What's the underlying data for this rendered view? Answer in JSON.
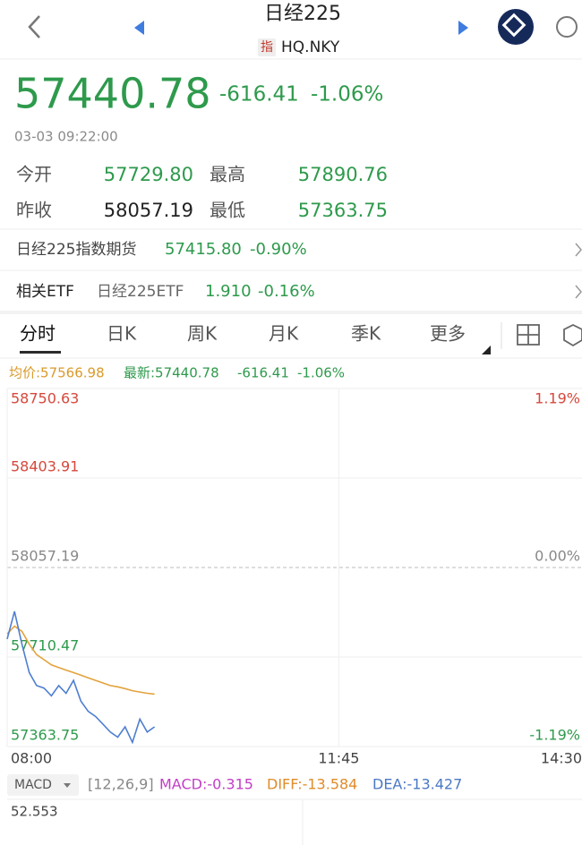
{
  "header": {
    "title": "日经225",
    "badge": "指",
    "code": "HQ.NKY"
  },
  "quote": {
    "price": "57440.78",
    "change": "-616.41",
    "change_pct": "-1.06%",
    "time": "03-03 09:22:00",
    "stats": [
      {
        "label": "今开",
        "value": "57729.80"
      },
      {
        "label": "最高",
        "value": "57890.76"
      },
      {
        "label": "昨收",
        "value": "58057.19"
      },
      {
        "label": "最低",
        "value": "57363.75"
      }
    ]
  },
  "futures": {
    "label": "日经225指数期货",
    "value": "57415.80",
    "change": "-0.90%"
  },
  "etf": {
    "label": "相关ETF",
    "name": "日经225ETF",
    "value": "1.910",
    "change": "-0.16%"
  },
  "tabs": [
    "分时",
    "日K",
    "周K",
    "月K",
    "季K",
    "更多"
  ],
  "legend": {
    "avg": "均价:57566.98",
    "latest": "最新:57440.78",
    "change": "-616.41",
    "pct": "-1.06%"
  },
  "chart_data": {
    "type": "line",
    "categories": [
      "08:00",
      null,
      null,
      null,
      null,
      null,
      null,
      null,
      null,
      null,
      null,
      null,
      null,
      null,
      null,
      null,
      null,
      null,
      null,
      null,
      null,
      null,
      null,
      null,
      null,
      null,
      null,
      null,
      null,
      null,
      null,
      null,
      null,
      null,
      null,
      null,
      null,
      null,
      null,
      null,
      null,
      null,
      null,
      null,
      null,
      "11:45",
      null,
      null,
      null,
      null,
      null,
      null,
      null,
      null,
      null,
      null,
      null,
      null,
      null,
      null,
      null,
      null,
      null,
      null,
      null,
      null,
      null,
      null,
      null,
      null,
      null,
      null,
      null,
      null,
      null,
      null,
      null,
      null,
      "14:30"
    ],
    "series": [
      {
        "name": "最新",
        "color": "#4f7fd0",
        "values": [
          57780,
          57887,
          57760,
          57650,
          57600,
          57590,
          57560,
          57600,
          57570,
          57620,
          57540,
          57500,
          57480,
          57450,
          57420,
          57400,
          57440,
          57380,
          57470,
          57420,
          57440,
          null,
          null,
          null,
          null,
          null,
          null,
          null,
          null,
          null,
          null,
          null,
          null,
          null,
          null,
          null,
          null,
          null,
          null,
          null,
          null,
          null,
          null,
          null,
          null,
          null,
          null,
          null,
          null,
          null,
          null,
          null,
          null,
          null,
          null,
          null,
          null,
          null,
          null,
          null,
          null,
          null,
          null,
          null,
          null,
          null,
          null,
          null,
          null,
          null,
          null,
          null,
          null,
          null,
          null,
          null,
          null,
          null,
          null
        ]
      },
      {
        "name": "均价",
        "color": "#e3a23c",
        "values": [
          57800,
          57830,
          57810,
          57760,
          57720,
          57700,
          57680,
          57670,
          57660,
          57650,
          57640,
          57630,
          57620,
          57610,
          57600,
          57595,
          57588,
          57580,
          57575,
          57570,
          57567,
          null,
          null,
          null,
          null,
          null,
          null,
          null,
          null,
          null,
          null,
          null,
          null,
          null,
          null,
          null,
          null,
          null,
          null,
          null,
          null,
          null,
          null,
          null,
          null,
          null,
          null,
          null,
          null,
          null,
          null,
          null,
          null,
          null,
          null,
          null,
          null,
          null,
          null,
          null,
          null,
          null,
          null,
          null,
          null,
          null,
          null,
          null,
          null,
          null,
          null,
          null,
          null,
          null,
          null,
          null,
          null,
          null,
          null
        ]
      }
    ],
    "ylim": [
      57363.75,
      58750.63
    ],
    "yticks": [
      57363.75,
      57710.47,
      58057.19,
      58403.91,
      58750.63
    ],
    "y2lim": [
      -1.19,
      1.19
    ],
    "y2ticks": [
      {
        "value": -1.19,
        "label": "-1.19%"
      },
      {
        "value": 0,
        "label": "0.00%"
      },
      {
        "value": 1.19,
        "label": "1.19%"
      }
    ],
    "grid": true
  },
  "macd": {
    "name": "MACD",
    "params": "[12,26,9]",
    "macd": "MACD:-0.315",
    "diff": "DIFF:-13.584",
    "dea": "DEA:-13.427",
    "max": "52.553"
  }
}
